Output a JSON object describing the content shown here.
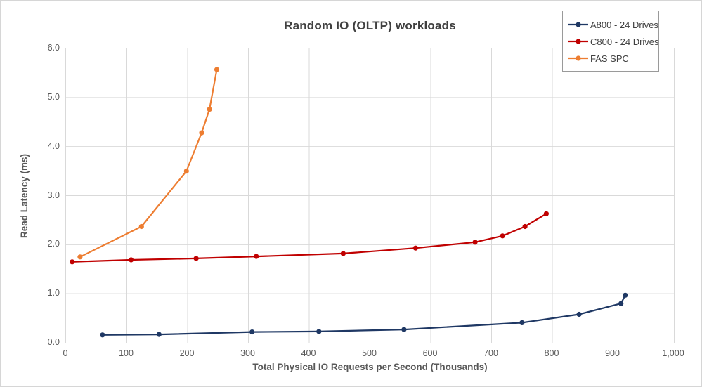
{
  "title": "Random IO (OLTP) workloads",
  "chart_data": {
    "type": "line",
    "title": "Random IO (OLTP) workloads",
    "xlabel": "Total Physical IO Requests per Second (Thousands)",
    "ylabel": "Read Latency (ms)",
    "xlim": [
      0,
      1000
    ],
    "ylim": [
      0,
      6
    ],
    "x_tick_values": [
      0,
      100,
      200,
      300,
      400,
      500,
      600,
      700,
      800,
      900,
      1000
    ],
    "x_tick_labels": [
      "0",
      "100",
      "200",
      "300",
      "400",
      "500",
      "600",
      "700",
      "800",
      "900",
      "1,000"
    ],
    "y_tick_values": [
      0,
      1,
      2,
      3,
      4,
      5,
      6
    ],
    "y_tick_labels": [
      "0.0",
      "1.0",
      "2.0",
      "3.0",
      "4.0",
      "5.0",
      "6.0"
    ],
    "grid": true,
    "legend_position": "top-right",
    "series": [
      {
        "name": "A800 - 24 Drives",
        "color": "#1f3864",
        "points": [
          [
            60,
            0.16
          ],
          [
            153,
            0.17
          ],
          [
            306,
            0.22
          ],
          [
            416,
            0.23
          ],
          [
            556,
            0.27
          ],
          [
            750,
            0.41
          ],
          [
            844,
            0.58
          ],
          [
            913,
            0.8
          ],
          [
            920,
            0.97
          ]
        ]
      },
      {
        "name": "C800 - 24 Drives",
        "color": "#c00000",
        "points": [
          [
            10,
            1.65
          ],
          [
            107,
            1.69
          ],
          [
            214,
            1.72
          ],
          [
            313,
            1.76
          ],
          [
            456,
            1.82
          ],
          [
            575,
            1.93
          ],
          [
            673,
            2.05
          ],
          [
            718,
            2.18
          ],
          [
            755,
            2.37
          ],
          [
            790,
            2.63
          ]
        ]
      },
      {
        "name": "FAS SPC",
        "color": "#ed7d31",
        "points": [
          [
            23,
            1.75
          ],
          [
            124,
            2.37
          ],
          [
            198,
            3.5
          ],
          [
            223,
            4.28
          ],
          [
            236,
            4.76
          ],
          [
            248,
            5.57
          ]
        ]
      }
    ]
  },
  "colors": {
    "gridline": "#d9d9d9",
    "axis_line": "#bfbfbf",
    "tick_text": "#595959",
    "title_text": "#404040",
    "legend_border": "#9a9a9a",
    "background": "#ffffff"
  }
}
